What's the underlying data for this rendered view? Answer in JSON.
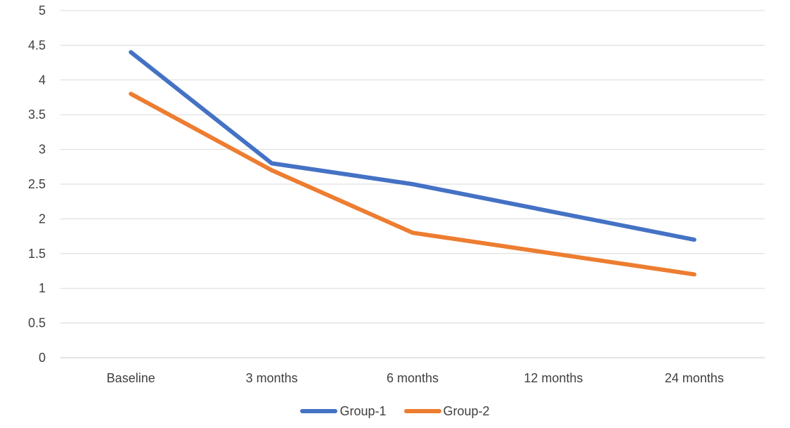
{
  "chart_data": {
    "type": "line",
    "title": "",
    "xlabel": "",
    "ylabel": "",
    "categories": [
      "Baseline",
      "3 months",
      "6 months",
      "12 months",
      "24 months"
    ],
    "series": [
      {
        "name": "Group-1",
        "color": "#4472C4",
        "values": [
          4.4,
          2.8,
          2.5,
          2.1,
          1.7
        ]
      },
      {
        "name": "Group-2",
        "color": "#ED7D31",
        "values": [
          3.8,
          2.7,
          1.8,
          1.5,
          1.2
        ]
      }
    ],
    "ylim": [
      0,
      5
    ],
    "yticks": [
      0,
      0.5,
      1,
      1.5,
      2,
      2.5,
      3,
      3.5,
      4,
      4.5,
      5
    ],
    "grid": true,
    "gridline_color": "#D9D9D9",
    "axis_line_color": "#C8C8C8",
    "label_color": "#404040",
    "tick_font_size": 17,
    "line_width": 6,
    "legend_position": "bottom"
  }
}
